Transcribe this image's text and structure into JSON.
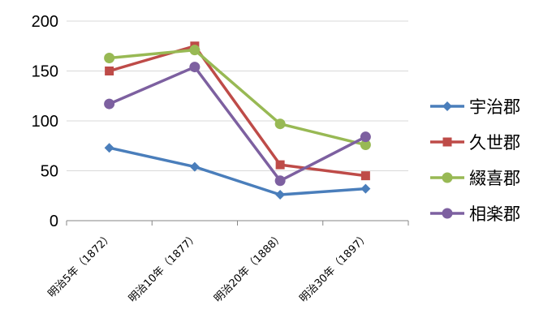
{
  "chart_data": {
    "type": "line",
    "title": "",
    "xlabel": "",
    "ylabel": "",
    "categories": [
      "明治5年（1872）",
      "明治10年（1877）",
      "明治20年（1888）",
      "明治30年（1897）"
    ],
    "ylim": [
      0,
      200
    ],
    "yticks": [
      0,
      50,
      100,
      150,
      200
    ],
    "grid": "horizontal",
    "legend_position": "right",
    "series": [
      {
        "name": "宇治郡",
        "values": [
          73,
          54,
          26,
          32
        ],
        "color": "#4A7EBB",
        "marker": "diamond"
      },
      {
        "name": "久世郡",
        "values": [
          150,
          175,
          56,
          45
        ],
        "color": "#BE4B48",
        "marker": "square"
      },
      {
        "name": "綴喜郡",
        "values": [
          163,
          171,
          97,
          76
        ],
        "color": "#98B954",
        "marker": "circle"
      },
      {
        "name": "相楽郡",
        "values": [
          117,
          154,
          40,
          84
        ],
        "color": "#7D60A0",
        "marker": "circle"
      }
    ]
  }
}
